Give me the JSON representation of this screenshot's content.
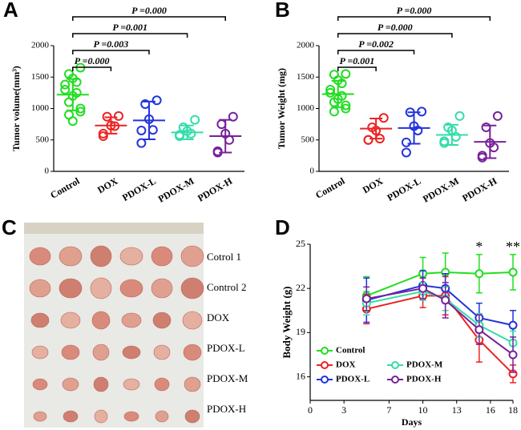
{
  "chart_data": [
    {
      "type": "dotplot",
      "panel": "A",
      "ylabel": "Tumor volume(mm³)",
      "categories": [
        "Control",
        "DOX",
        "PDOX-L",
        "PDOX-M",
        "PDOX-H"
      ],
      "colors": [
        "#22dd22",
        "#ee2222",
        "#2233dd",
        "#33ddaa",
        "#772299"
      ],
      "points": [
        [
          1650,
          1550,
          1480,
          1420,
          1380,
          1300,
          1250,
          1200,
          1100,
          1000,
          950,
          900,
          800
        ],
        [
          880,
          870,
          730,
          720,
          600,
          560
        ],
        [
          1130,
          1070,
          830,
          660,
          650,
          450
        ],
        [
          820,
          700,
          640,
          600,
          580,
          560
        ],
        [
          870,
          750,
          600,
          500,
          320,
          300
        ]
      ],
      "mean": [
        1220,
        730,
        810,
        620,
        560
      ],
      "sd": [
        250,
        130,
        300,
        110,
        260
      ],
      "ylim": [
        0,
        2000
      ],
      "yticks": [
        0,
        500,
        1000,
        1500,
        2000
      ],
      "annotations": [
        "P =0.000",
        "P =0.003",
        "P =0.001",
        "P =0.000"
      ]
    },
    {
      "type": "dotplot",
      "panel": "B",
      "ylabel": "Tumor Weight (mg)",
      "categories": [
        "Control",
        "DOX",
        "PDOX-L",
        "PDOX-M",
        "PDOX-H"
      ],
      "colors": [
        "#22dd22",
        "#ee2222",
        "#2233dd",
        "#33ddaa",
        "#772299"
      ],
      "points": [
        [
          1550,
          1540,
          1450,
          1400,
          1300,
          1250,
          1200,
          1150,
          1100,
          1050,
          1000,
          950
        ],
        [
          850,
          700,
          650,
          520,
          500,
          500
        ],
        [
          950,
          940,
          720,
          650,
          460,
          300
        ],
        [
          880,
          700,
          650,
          550,
          450,
          480
        ],
        [
          880,
          700,
          450,
          380,
          250,
          220
        ]
      ],
      "mean": [
        1230,
        680,
        690,
        580,
        470
      ],
      "sd": [
        210,
        160,
        250,
        160,
        260
      ],
      "ylim": [
        0,
        2000
      ],
      "yticks": [
        0,
        500,
        1000,
        1500,
        2000
      ],
      "annotations": [
        "P =0.001",
        "P =0.002",
        "P =0.000",
        "P =0.000"
      ]
    },
    {
      "type": "line",
      "panel": "D",
      "xlabel": "Days",
      "ylabel": "Body Weight (g)",
      "x": [
        5,
        10,
        12,
        15,
        18
      ],
      "series": [
        {
          "name": "Control",
          "color": "#22dd22",
          "values": [
            21.5,
            23.0,
            23.1,
            23.0,
            23.1
          ],
          "errors": [
            1.3,
            1.1,
            1.3,
            1.3,
            1.2
          ]
        },
        {
          "name": "DOX",
          "color": "#ee2222",
          "values": [
            20.6,
            21.5,
            21.5,
            18.5,
            16.2
          ],
          "errors": [
            1.0,
            0.8,
            1.3,
            1.5,
            0.6
          ]
        },
        {
          "name": "PDOX-L",
          "color": "#2233dd",
          "values": [
            21.2,
            22.2,
            22.0,
            20.0,
            19.5
          ],
          "errors": [
            1.5,
            1.0,
            1.0,
            1.0,
            1.0
          ]
        },
        {
          "name": "PDOX-M",
          "color": "#33ddaa",
          "values": [
            21.0,
            21.8,
            21.3,
            19.5,
            18.3
          ],
          "errors": [
            0.8,
            0.6,
            0.8,
            0.8,
            0.8
          ]
        },
        {
          "name": "PDOX-H",
          "color": "#772299",
          "values": [
            21.3,
            22.0,
            21.2,
            19.2,
            17.5
          ],
          "errors": [
            0.8,
            0.7,
            1.2,
            1.0,
            1.2
          ]
        }
      ],
      "xlim": [
        0,
        18
      ],
      "xticks": [
        0,
        3,
        7,
        10,
        13,
        16,
        18
      ],
      "ylim": [
        14.4,
        25
      ],
      "yticks": [
        16,
        19,
        22,
        25
      ],
      "legend": "lower left",
      "annotations": [
        {
          "text": "*",
          "x": 15
        },
        {
          "text": "**",
          "x": 18
        }
      ]
    }
  ],
  "photo": {
    "panel": "C",
    "row_labels": [
      "Cotrol 1",
      "Control 2",
      "DOX",
      "PDOX-L",
      "PDOX-M",
      "PDOX-H"
    ]
  }
}
